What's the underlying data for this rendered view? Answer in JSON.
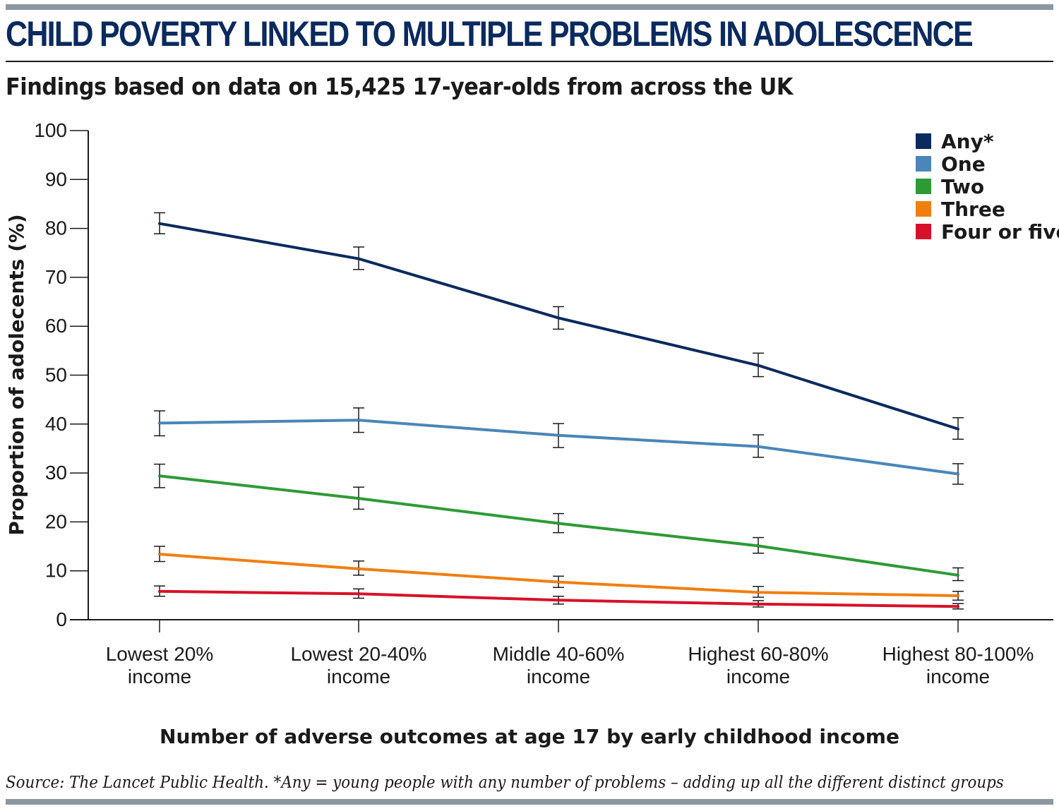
{
  "header": {
    "title": "CHILD POVERTY LINKED TO MULTIPLE PROBLEMS IN ADOLESCENCE",
    "subtitle": "Findings based on data on 15,425 17-year-olds from across the UK"
  },
  "footer": {
    "source": "Source: The Lancet Public Health. *Any = young people with any number of problems – adding up all the different distinct groups"
  },
  "chart_data": {
    "type": "line",
    "xlabel": "Number of adverse outcomes at age 17 by early childhood income",
    "ylabel": "Proportion of adolecents (%)",
    "ylim": [
      0,
      100
    ],
    "yticks": [
      "0",
      "10",
      "20",
      "30",
      "40",
      "50",
      "60",
      "70",
      "80",
      "90",
      "100"
    ],
    "grid": false,
    "legend_position": "top-right",
    "categories": [
      [
        "Lowest 20%",
        "income"
      ],
      [
        "Lowest 20-40%",
        "income"
      ],
      [
        "Middle 40-60%",
        "income"
      ],
      [
        "Highest 60-80%",
        "income"
      ],
      [
        "Highest 80-100%",
        "income"
      ]
    ],
    "series": [
      {
        "name": "Any*",
        "color": "#0b2a5e",
        "values": [
          81,
          73.8,
          61.7,
          52,
          39
        ],
        "err_low": [
          78.9,
          71.6,
          59.4,
          49.7,
          36.9
        ],
        "err_high": [
          83.2,
          76.2,
          64,
          54.5,
          41.3
        ]
      },
      {
        "name": "One",
        "color": "#4a86b8",
        "values": [
          40.2,
          40.8,
          37.7,
          35.4,
          29.8
        ],
        "err_low": [
          37.6,
          38.3,
          35.2,
          33.2,
          27.7
        ],
        "err_high": [
          42.7,
          43.3,
          40.1,
          37.8,
          31.9
        ]
      },
      {
        "name": "Two",
        "color": "#2e9a35",
        "values": [
          29.4,
          24.8,
          19.7,
          15.1,
          9.1
        ],
        "err_low": [
          27,
          22.6,
          17.8,
          13.6,
          8
        ],
        "err_high": [
          31.8,
          27.1,
          21.7,
          16.8,
          10.6
        ]
      },
      {
        "name": "Three",
        "color": "#f07f12",
        "values": [
          13.4,
          10.4,
          7.7,
          5.6,
          4.9
        ],
        "err_low": [
          11.9,
          9.1,
          6.6,
          4.6,
          4
        ],
        "err_high": [
          15,
          12,
          8.9,
          6.8,
          5.8
        ]
      },
      {
        "name": "Four or five",
        "color": "#d7112a",
        "values": [
          5.8,
          5.3,
          4,
          3.2,
          2.7
        ],
        "err_low": [
          4.8,
          4.4,
          3.2,
          2.6,
          2.2
        ],
        "err_high": [
          6.9,
          6.3,
          4.8,
          3.9,
          3.3
        ]
      }
    ]
  }
}
